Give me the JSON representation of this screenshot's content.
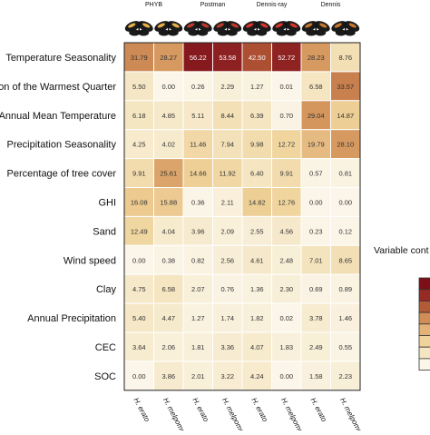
{
  "chart_data": {
    "type": "heatmap",
    "title": "",
    "group_labels": [
      "PHYB",
      "Postman",
      "Dennis-ray",
      "Dennis"
    ],
    "columns": [
      "H. erato",
      "H. melpomene",
      "H. erato",
      "H. melpomene",
      "H. erato",
      "H. melpomene",
      "H. erato",
      "H. melpomene"
    ],
    "rows": [
      "Temperature Seasonality",
      "on of the Warmest Quarter",
      "Annual Mean Temperature",
      "Precipitation Seasonality",
      "Percentage of tree cover",
      "GHI",
      "Sand",
      "Wind speed",
      "Clay",
      "Annual Precipitation",
      "CEC",
      "SOC"
    ],
    "values": [
      [
        31.79,
        28.27,
        56.22,
        53.58,
        42.5,
        52.72,
        28.23,
        8.76
      ],
      [
        5.5,
        0.0,
        0.26,
        2.29,
        1.27,
        0.01,
        6.58,
        33.57
      ],
      [
        6.18,
        4.85,
        5.11,
        8.44,
        6.39,
        0.7,
        29.04,
        14.87
      ],
      [
        4.25,
        4.02,
        11.46,
        7.94,
        9.98,
        12.72,
        19.79,
        28.1
      ],
      [
        9.91,
        25.61,
        14.66,
        11.92,
        6.4,
        9.91,
        0.57,
        0.81
      ],
      [
        16.08,
        15.88,
        0.36,
        2.11,
        14.82,
        12.76,
        0.0,
        0.0
      ],
      [
        12.49,
        4.04,
        3.96,
        2.09,
        2.55,
        4.56,
        0.23,
        0.12
      ],
      [
        0.0,
        0.38,
        0.82,
        2.56,
        4.61,
        2.48,
        7.01,
        8.65
      ],
      [
        4.75,
        6.58,
        2.07,
        0.76,
        1.36,
        2.3,
        0.69,
        0.89
      ],
      [
        5.4,
        4.47,
        1.27,
        1.74,
        1.82,
        0.02,
        3.78,
        1.46
      ],
      [
        3.64,
        2.06,
        1.81,
        3.36,
        4.07,
        1.83,
        2.49,
        0.55
      ],
      [
        0.0,
        3.86,
        2.01,
        3.22,
        4.24,
        0.0,
        1.58,
        2.23
      ]
    ],
    "value_range": [
      0,
      60
    ],
    "legend_title": "Variable cont",
    "colorscale": [
      "#fbf6e9",
      "#f5e6c3",
      "#efd39a",
      "#e3b277",
      "#d08e56",
      "#b35a37",
      "#962a24",
      "#7d0f18"
    ]
  }
}
